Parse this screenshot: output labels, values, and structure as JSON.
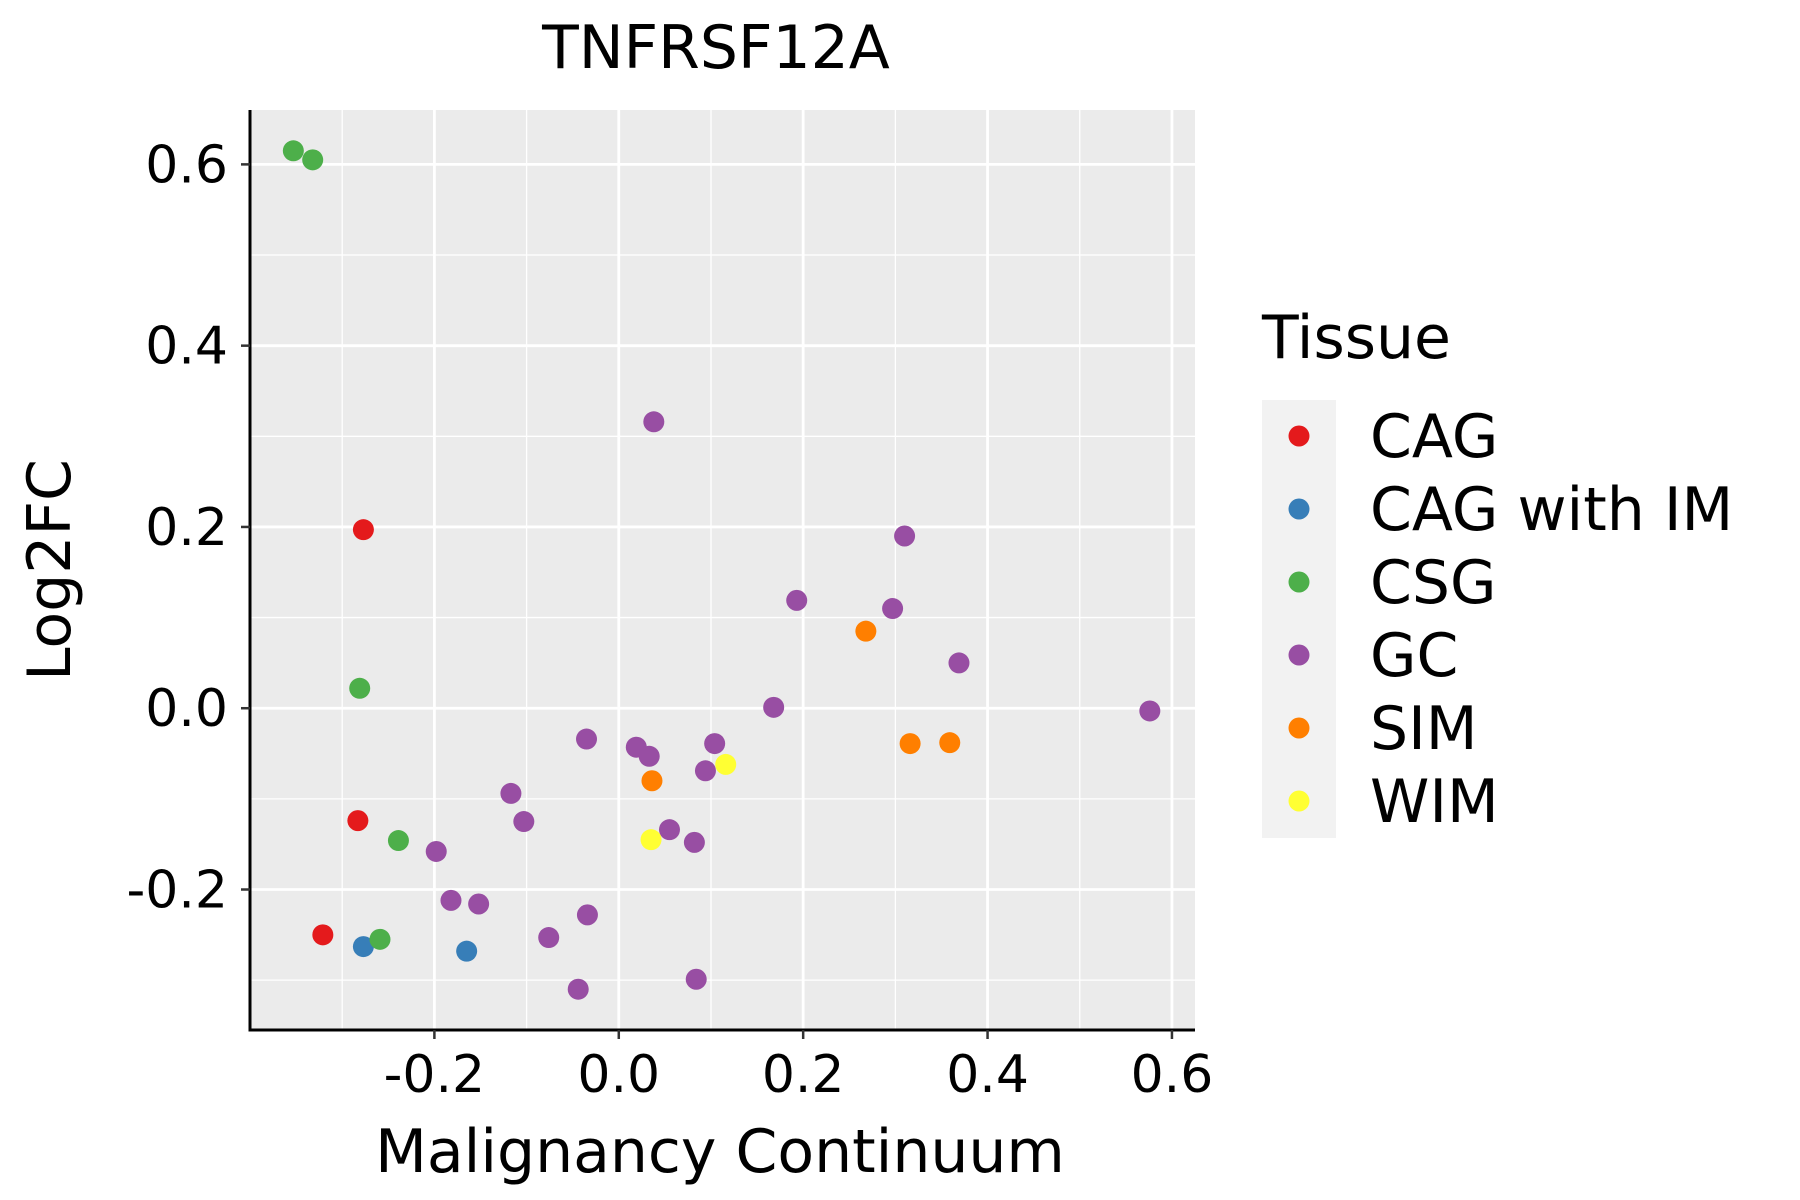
{
  "chart_data": {
    "type": "scatter",
    "title": "TNFRSF12A",
    "xlabel": "Malignancy Continuum",
    "ylabel": "Log2FC",
    "xlim": [
      -0.4,
      0.625
    ],
    "ylim": [
      -0.355,
      0.66
    ],
    "xticks": [
      -0.2,
      0.0,
      0.2,
      0.4,
      0.6
    ],
    "xtick_labels": [
      "-0.2",
      "0.0",
      "0.2",
      "0.4",
      "0.6"
    ],
    "yticks": [
      -0.2,
      0.0,
      0.2,
      0.4,
      0.6
    ],
    "ytick_labels": [
      "-0.2",
      "0.0",
      "0.2",
      "0.4",
      "0.6"
    ],
    "grid": true,
    "legend": {
      "title": "Tissue",
      "placement": "right",
      "entries": [
        {
          "label": "CAG",
          "color": "#E41A1C"
        },
        {
          "label": "CAG with IM",
          "color": "#377EB8"
        },
        {
          "label": "CSG",
          "color": "#4DAF4A"
        },
        {
          "label": "GC",
          "color": "#984EA3"
        },
        {
          "label": "SIM",
          "color": "#FF7F00"
        },
        {
          "label": "WIM",
          "color": "#FFFF33"
        }
      ]
    },
    "series": [
      {
        "name": "CAG",
        "color": "#E41A1C",
        "points": [
          [
            -0.277,
            0.197
          ],
          [
            -0.283,
            -0.124
          ],
          [
            -0.321,
            -0.25
          ]
        ]
      },
      {
        "name": "CAG with IM",
        "color": "#377EB8",
        "points": [
          [
            -0.277,
            -0.263
          ],
          [
            -0.165,
            -0.268
          ]
        ]
      },
      {
        "name": "CSG",
        "color": "#4DAF4A",
        "points": [
          [
            -0.353,
            0.615
          ],
          [
            -0.332,
            0.605
          ],
          [
            -0.281,
            0.022
          ],
          [
            -0.239,
            -0.146
          ],
          [
            -0.259,
            -0.255
          ]
        ]
      },
      {
        "name": "GC",
        "color": "#984EA3",
        "points": [
          [
            0.038,
            0.316
          ],
          [
            0.31,
            0.19
          ],
          [
            0.193,
            0.119
          ],
          [
            0.297,
            0.11
          ],
          [
            0.369,
            0.05
          ],
          [
            0.168,
            0.001
          ],
          [
            0.576,
            -0.003
          ],
          [
            -0.035,
            -0.034
          ],
          [
            0.019,
            -0.043
          ],
          [
            0.033,
            -0.053
          ],
          [
            0.104,
            -0.039
          ],
          [
            0.094,
            -0.069
          ],
          [
            -0.117,
            -0.094
          ],
          [
            -0.103,
            -0.125
          ],
          [
            0.055,
            -0.134
          ],
          [
            0.082,
            -0.148
          ],
          [
            -0.198,
            -0.158
          ],
          [
            -0.182,
            -0.212
          ],
          [
            -0.152,
            -0.216
          ],
          [
            -0.034,
            -0.228
          ],
          [
            -0.076,
            -0.253
          ],
          [
            0.084,
            -0.299
          ],
          [
            -0.044,
            -0.31
          ]
        ]
      },
      {
        "name": "SIM",
        "color": "#FF7F00",
        "points": [
          [
            0.268,
            0.085
          ],
          [
            0.316,
            -0.039
          ],
          [
            0.359,
            -0.038
          ],
          [
            0.036,
            -0.08
          ]
        ]
      },
      {
        "name": "WIM",
        "color": "#FFFF33",
        "points": [
          [
            0.116,
            -0.062
          ],
          [
            0.035,
            -0.145
          ]
        ]
      }
    ]
  }
}
